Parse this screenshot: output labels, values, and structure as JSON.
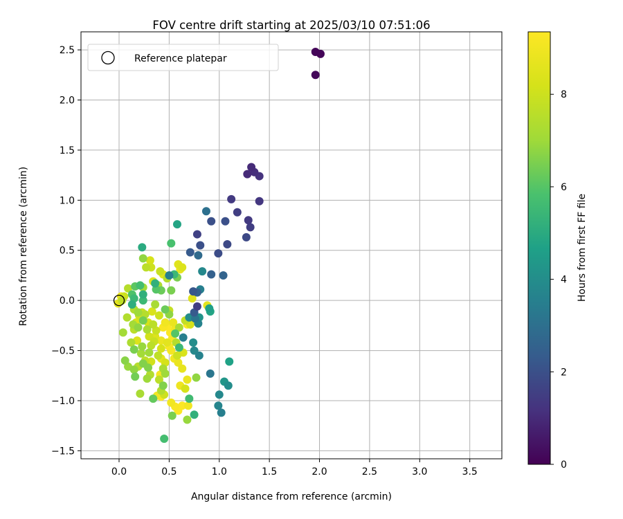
{
  "chart_data": {
    "type": "scatter",
    "title": "FOV centre drift starting at 2025/03/10 07:51:06",
    "xlabel": "Angular distance from reference (arcmin)",
    "ylabel": "Rotation from reference (arcmin)",
    "xlim": [
      -0.38,
      3.82
    ],
    "ylim": [
      -1.58,
      2.68
    ],
    "xticks": [
      "0.0",
      "0.5",
      "1.0",
      "1.5",
      "2.0",
      "2.5",
      "3.0",
      "3.5"
    ],
    "yticks": [
      "-1.5",
      "-1.0",
      "-0.5",
      "0.0",
      "0.5",
      "1.0",
      "1.5",
      "2.0",
      "2.5"
    ],
    "grid": true,
    "legend": {
      "position": "top-left",
      "entries": [
        "Reference platepar"
      ]
    },
    "reference_point": [
      0.0,
      0.0
    ],
    "colorbar": {
      "label": "Hours from first FF file",
      "range": [
        0,
        9.35
      ],
      "ticks": [
        "0",
        "2",
        "4",
        "6",
        "8"
      ],
      "colormap": "viridis"
    },
    "points": [
      [
        1.96,
        2.48,
        0.1
      ],
      [
        2.01,
        2.46,
        0.1
      ],
      [
        1.96,
        2.25,
        0.15
      ],
      [
        1.32,
        1.33,
        1.0
      ],
      [
        1.28,
        1.26,
        1.0
      ],
      [
        1.35,
        1.28,
        1.1
      ],
      [
        1.4,
        1.24,
        1.2
      ],
      [
        1.12,
        1.01,
        1.4
      ],
      [
        1.4,
        0.99,
        1.3
      ],
      [
        1.18,
        0.88,
        1.5
      ],
      [
        0.87,
        0.89,
        3.0
      ],
      [
        1.29,
        0.8,
        1.4
      ],
      [
        1.31,
        0.73,
        1.5
      ],
      [
        0.92,
        0.79,
        2.0
      ],
      [
        1.06,
        0.79,
        2.0
      ],
      [
        0.78,
        0.66,
        1.6
      ],
      [
        1.08,
        0.56,
        1.8
      ],
      [
        1.27,
        0.63,
        1.8
      ],
      [
        0.58,
        0.76,
        4.8
      ],
      [
        0.81,
        0.55,
        2.0
      ],
      [
        0.71,
        0.48,
        2.3
      ],
      [
        0.79,
        0.45,
        2.8
      ],
      [
        0.99,
        0.47,
        1.9
      ],
      [
        0.52,
        0.57,
        5.8
      ],
      [
        0.23,
        0.53,
        5.0
      ],
      [
        0.24,
        0.42,
        6.8
      ],
      [
        0.31,
        0.4,
        8.2
      ],
      [
        0.83,
        0.29,
        3.8
      ],
      [
        0.92,
        0.26,
        2.5
      ],
      [
        1.04,
        0.25,
        2.6
      ],
      [
        0.59,
        0.36,
        8.5
      ],
      [
        0.61,
        0.31,
        8.8
      ],
      [
        0.63,
        0.33,
        8.4
      ],
      [
        0.27,
        0.33,
        7.6
      ],
      [
        0.32,
        0.33,
        8.0
      ],
      [
        0.5,
        0.25,
        3.5
      ],
      [
        0.58,
        0.23,
        6.5
      ],
      [
        0.55,
        0.26,
        5.5
      ],
      [
        0.48,
        0.22,
        7.5
      ],
      [
        0.36,
        0.17,
        5.2
      ],
      [
        0.39,
        0.15,
        7.3
      ],
      [
        0.41,
        0.29,
        7.9
      ],
      [
        0.44,
        0.26,
        8.5
      ],
      [
        0.34,
        0.19,
        8.4
      ],
      [
        0.21,
        0.15,
        5.7
      ],
      [
        0.16,
        0.14,
        6.1
      ],
      [
        0.24,
        0.13,
        7.1
      ],
      [
        0.09,
        0.12,
        7.5
      ],
      [
        0.05,
        0.04,
        8.0
      ],
      [
        0.03,
        0.0,
        7.7
      ],
      [
        -0.01,
        -0.03,
        8.6
      ],
      [
        0.02,
        0.04,
        8.8
      ],
      [
        0.13,
        0.06,
        5.9
      ],
      [
        0.15,
        0.02,
        5.5
      ],
      [
        0.24,
        0.06,
        5.2
      ],
      [
        0.24,
        0.0,
        5.5
      ],
      [
        0.37,
        0.11,
        6.0
      ],
      [
        0.42,
        0.1,
        6.3
      ],
      [
        0.52,
        0.1,
        6.5
      ],
      [
        0.74,
        0.09,
        2.2
      ],
      [
        0.78,
        0.08,
        2.5
      ],
      [
        0.81,
        0.11,
        3.5
      ],
      [
        0.73,
        0.02,
        8.5
      ],
      [
        0.88,
        -0.05,
        8.6
      ],
      [
        0.9,
        -0.08,
        4.6
      ],
      [
        0.91,
        -0.11,
        4.8
      ],
      [
        0.78,
        -0.06,
        1.5
      ],
      [
        0.75,
        -0.12,
        2.3
      ],
      [
        0.76,
        -0.18,
        3.2
      ],
      [
        0.79,
        -0.23,
        3.6
      ],
      [
        0.8,
        -0.17,
        4.2
      ],
      [
        0.7,
        -0.17,
        4.0
      ],
      [
        0.66,
        -0.2,
        7.8
      ],
      [
        0.71,
        -0.24,
        8.2
      ],
      [
        0.68,
        -0.24,
        9.3
      ],
      [
        0.64,
        -0.37,
        3.5
      ],
      [
        0.74,
        -0.42,
        4.0
      ],
      [
        0.75,
        -0.5,
        3.8
      ],
      [
        0.8,
        -0.55,
        3.6
      ],
      [
        0.91,
        -0.73,
        3.2
      ],
      [
        1.1,
        -0.61,
        4.7
      ],
      [
        1.05,
        -0.81,
        4.3
      ],
      [
        1.09,
        -0.85,
        4.0
      ],
      [
        1.0,
        -0.94,
        3.8
      ],
      [
        0.99,
        -1.05,
        3.7
      ],
      [
        1.02,
        -1.12,
        3.5
      ],
      [
        0.75,
        -1.14,
        5.2
      ],
      [
        0.7,
        -0.98,
        5.6
      ],
      [
        0.77,
        -0.77,
        6.8
      ],
      [
        0.68,
        -0.79,
        8.8
      ],
      [
        0.66,
        -0.88,
        8.2
      ],
      [
        0.69,
        -1.05,
        9.0
      ],
      [
        0.63,
        -1.05,
        9.3
      ],
      [
        0.59,
        -1.1,
        9.3
      ],
      [
        0.56,
        -1.06,
        9.2
      ],
      [
        0.52,
        -1.02,
        9.0
      ],
      [
        0.53,
        -1.15,
        6.5
      ],
      [
        0.68,
        -1.19,
        6.9
      ],
      [
        0.45,
        -1.38,
        5.7
      ],
      [
        0.61,
        -0.85,
        8.9
      ],
      [
        0.63,
        -0.68,
        8.7
      ],
      [
        0.59,
        -0.62,
        8.8
      ],
      [
        0.64,
        -0.52,
        8.3
      ],
      [
        0.58,
        -0.55,
        8.0
      ],
      [
        0.55,
        -0.58,
        9.0
      ],
      [
        0.52,
        -0.5,
        9.1
      ],
      [
        0.5,
        -0.46,
        9.2
      ],
      [
        0.48,
        -0.42,
        8.6
      ],
      [
        0.53,
        -0.38,
        9.2
      ],
      [
        0.51,
        -0.32,
        9.3
      ],
      [
        0.56,
        -0.28,
        9.0
      ],
      [
        0.54,
        -0.22,
        8.8
      ],
      [
        0.48,
        -0.26,
        9.3
      ],
      [
        0.46,
        -0.22,
        9.0
      ],
      [
        0.44,
        -0.27,
        9.2
      ],
      [
        0.5,
        -0.14,
        6.8
      ],
      [
        0.46,
        -0.09,
        6.3
      ],
      [
        0.5,
        -0.1,
        7.8
      ],
      [
        0.4,
        -0.15,
        8.0
      ],
      [
        0.36,
        -0.04,
        7.2
      ],
      [
        0.34,
        -0.24,
        7.6
      ],
      [
        0.37,
        -0.3,
        7.9
      ],
      [
        0.36,
        -0.36,
        8.4
      ],
      [
        0.42,
        -0.4,
        8.8
      ],
      [
        0.42,
        -0.48,
        8.2
      ],
      [
        0.39,
        -0.55,
        7.7
      ],
      [
        0.42,
        -0.58,
        8.6
      ],
      [
        0.46,
        -0.62,
        8.2
      ],
      [
        0.44,
        -0.68,
        7.2
      ],
      [
        0.46,
        -0.73,
        7.0
      ],
      [
        0.41,
        -0.74,
        9.1
      ],
      [
        0.4,
        -0.79,
        7.6
      ],
      [
        0.44,
        -0.85,
        6.6
      ],
      [
        0.42,
        -0.9,
        7.4
      ],
      [
        0.45,
        -0.94,
        8.0
      ],
      [
        0.38,
        -0.95,
        9.0
      ],
      [
        0.42,
        -0.96,
        9.3
      ],
      [
        0.34,
        -0.98,
        6.2
      ],
      [
        0.31,
        -0.74,
        7.4
      ],
      [
        0.28,
        -0.78,
        7.0
      ],
      [
        0.29,
        -0.67,
        6.6
      ],
      [
        0.26,
        -0.6,
        7.7
      ],
      [
        0.32,
        -0.61,
        8.1
      ],
      [
        0.3,
        -0.52,
        7.0
      ],
      [
        0.32,
        -0.45,
        7.6
      ],
      [
        0.35,
        -0.41,
        7.9
      ],
      [
        0.3,
        -0.36,
        8.1
      ],
      [
        0.28,
        -0.29,
        7.2
      ],
      [
        0.29,
        -0.22,
        8.2
      ],
      [
        0.24,
        -0.2,
        6.4
      ],
      [
        0.19,
        -0.12,
        7.0
      ],
      [
        0.15,
        -0.09,
        7.4
      ],
      [
        0.13,
        -0.04,
        5.1
      ],
      [
        0.2,
        -0.15,
        8.0
      ],
      [
        0.17,
        -0.22,
        8.3
      ],
      [
        0.14,
        -0.24,
        7.1
      ],
      [
        0.15,
        -0.29,
        7.6
      ],
      [
        0.19,
        -0.27,
        6.8
      ],
      [
        0.08,
        -0.17,
        7.4
      ],
      [
        0.04,
        -0.32,
        7.1
      ],
      [
        0.12,
        -0.42,
        7.3
      ],
      [
        0.15,
        -0.49,
        6.5
      ],
      [
        0.18,
        -0.4,
        8.4
      ],
      [
        0.23,
        -0.46,
        6.9
      ],
      [
        0.22,
        -0.53,
        7.1
      ],
      [
        0.24,
        -0.63,
        6.6
      ],
      [
        0.19,
        -0.66,
        7.5
      ],
      [
        0.15,
        -0.69,
        6.8
      ],
      [
        0.09,
        -0.66,
        6.9
      ],
      [
        0.06,
        -0.6,
        6.7
      ],
      [
        0.16,
        -0.76,
        6.4
      ],
      [
        0.21,
        -0.93,
        7.2
      ],
      [
        0.26,
        -0.14,
        7.5
      ],
      [
        0.23,
        -0.12,
        7.9
      ],
      [
        0.33,
        -0.11,
        8.3
      ],
      [
        0.6,
        -0.47,
        5.5
      ],
      [
        0.56,
        -0.33,
        6.0
      ],
      [
        0.6,
        -0.27,
        7.2
      ],
      [
        0.57,
        -0.42,
        7.5
      ]
    ]
  }
}
